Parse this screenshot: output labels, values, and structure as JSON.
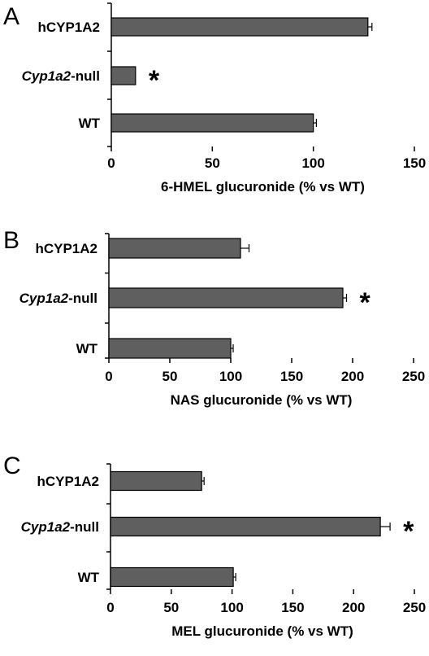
{
  "chart_data": [
    {
      "type": "bar",
      "orientation": "horizontal",
      "panel_label": "A",
      "categories": [
        "hCYP1A2",
        "Cyp1a2-null",
        "WT"
      ],
      "category_italic_part": [
        "",
        "Cyp1a2",
        ""
      ],
      "values": [
        127,
        12,
        100
      ],
      "errors": [
        2,
        0,
        1.5
      ],
      "annotations": [
        "",
        "*",
        ""
      ],
      "xlabel": "6-HMEL glucuronide (% vs WT)",
      "xlim": [
        0,
        150
      ],
      "xticks": [
        0,
        50,
        100,
        150
      ],
      "grid": false
    },
    {
      "type": "bar",
      "orientation": "horizontal",
      "panel_label": "B",
      "categories": [
        "hCYP1A2",
        "Cyp1a2-null",
        "WT"
      ],
      "category_italic_part": [
        "",
        "Cyp1a2",
        ""
      ],
      "values": [
        108,
        192,
        100
      ],
      "errors": [
        7,
        3,
        2
      ],
      "annotations": [
        "",
        "",
        "*"
      ],
      "annotation_on": [
        false,
        true,
        false
      ],
      "xlabel": "NAS glucuronide (% vs WT)",
      "xlim": [
        0,
        250
      ],
      "xticks": [
        0,
        50,
        100,
        150,
        200,
        250
      ],
      "grid": false
    },
    {
      "type": "bar",
      "orientation": "horizontal",
      "panel_label": "C",
      "categories": [
        "hCYP1A2",
        "Cyp1a2-null",
        "WT"
      ],
      "category_italic_part": [
        "",
        "Cyp1a2",
        ""
      ],
      "values": [
        75,
        222,
        101
      ],
      "errors": [
        2,
        8,
        2
      ],
      "annotations": [
        "",
        "*",
        ""
      ],
      "xlabel": "MEL glucuronide (% vs WT)",
      "xlim": [
        0,
        250
      ],
      "xticks": [
        0,
        50,
        100,
        150,
        200,
        250
      ],
      "grid": false
    }
  ],
  "colors": {
    "bar_fill": "#5f5f5f",
    "bar_stroke": "#000000",
    "axis": "#000000"
  }
}
